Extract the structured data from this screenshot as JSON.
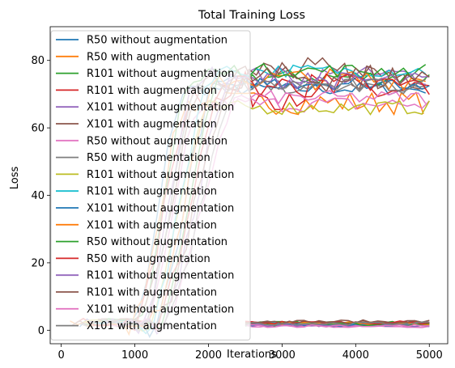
{
  "chart_data": {
    "type": "line",
    "title": "Total Training Loss",
    "xlabel": "Iterations",
    "ylabel": "Loss",
    "xlim": [
      -150,
      5250
    ],
    "ylim": [
      -4,
      90
    ],
    "xticks": [
      0,
      1000,
      2000,
      3000,
      4000,
      5000
    ],
    "yticks": [
      0,
      20,
      40,
      60,
      80
    ],
    "grid": false,
    "legend_position": "top-left",
    "series": [
      {
        "name": "R50 without augmentation",
        "color": "#1f77b4",
        "start_x": 250,
        "rise_start": 950,
        "rise_end": 1700,
        "plateau": 71.5,
        "noise": 1.2,
        "final_low": 1.8
      },
      {
        "name": "R50 with augmentation",
        "color": "#ff7f0e",
        "start_x": 120,
        "rise_start": 900,
        "rise_end": 1750,
        "plateau": 67.5,
        "noise": 2.2,
        "final_low": 2.0
      },
      {
        "name": "R101 without augmentation",
        "color": "#2ca02c",
        "start_x": 300,
        "rise_start": 1000,
        "rise_end": 1800,
        "plateau": 75.0,
        "noise": 1.5,
        "final_low": 2.2
      },
      {
        "name": "R101 with augmentation",
        "color": "#d62728",
        "start_x": 200,
        "rise_start": 950,
        "rise_end": 1850,
        "plateau": 71.0,
        "noise": 3.5,
        "final_low": 1.9
      },
      {
        "name": "X101 without augmentation",
        "color": "#9467bd",
        "start_x": 350,
        "rise_start": 1050,
        "rise_end": 1900,
        "plateau": 75.5,
        "noise": 1.8,
        "final_low": 1.5
      },
      {
        "name": "X101 with augmentation",
        "color": "#8c564b",
        "start_x": 150,
        "rise_start": 1000,
        "rise_end": 2000,
        "plateau": 76.0,
        "noise": 3.2,
        "final_low": 2.6
      },
      {
        "name": "R50 without augmentation",
        "color": "#e377c2",
        "start_x": 400,
        "rise_start": 1100,
        "rise_end": 1950,
        "plateau": 67.0,
        "noise": 1.5,
        "final_low": 1.2
      },
      {
        "name": "R50 with augmentation",
        "color": "#7f7f7f",
        "start_x": 250,
        "rise_start": 1050,
        "rise_end": 1900,
        "plateau": 72.0,
        "noise": 1.2,
        "final_low": 1.8
      },
      {
        "name": "R101 without augmentation",
        "color": "#bcbd22",
        "start_x": 300,
        "rise_start": 1100,
        "rise_end": 2050,
        "plateau": 66.0,
        "noise": 1.3,
        "final_low": 2.0
      },
      {
        "name": "R101 with augmentation",
        "color": "#17becf",
        "start_x": 450,
        "rise_start": 1150,
        "rise_end": 2100,
        "plateau": 77.0,
        "noise": 1.2,
        "final_low": 1.9
      },
      {
        "name": "X101 without augmentation",
        "color": "#1f77b4",
        "start_x": 500,
        "rise_start": 1200,
        "rise_end": 2150,
        "plateau": 73.5,
        "noise": 1.4,
        "final_low": 1.6
      },
      {
        "name": "X101 with augmentation",
        "color": "#ff7f0e",
        "start_x": 350,
        "rise_start": 1150,
        "rise_end": 2200,
        "plateau": 74.5,
        "noise": 2.0,
        "final_low": 2.1
      },
      {
        "name": "R50 without augmentation",
        "color": "#2ca02c",
        "start_x": 550,
        "rise_start": 1250,
        "rise_end": 2250,
        "plateau": 77.0,
        "noise": 1.3,
        "final_low": 1.7
      },
      {
        "name": "R50 with augmentation",
        "color": "#d62728",
        "start_x": 400,
        "rise_start": 1200,
        "rise_end": 2300,
        "plateau": 72.5,
        "noise": 2.5,
        "final_low": 2.3
      },
      {
        "name": "R101 without augmentation",
        "color": "#9467bd",
        "start_x": 600,
        "rise_start": 1300,
        "rise_end": 2350,
        "plateau": 74.0,
        "noise": 1.6,
        "final_low": 1.5
      },
      {
        "name": "R101 with augmentation",
        "color": "#8c564b",
        "start_x": 500,
        "rise_start": 1250,
        "rise_end": 2400,
        "plateau": 75.0,
        "noise": 2.8,
        "final_low": 2.4
      },
      {
        "name": "X101 without augmentation",
        "color": "#e377c2",
        "start_x": 650,
        "rise_start": 1350,
        "rise_end": 2450,
        "plateau": 69.0,
        "noise": 1.3,
        "final_low": 1.3
      },
      {
        "name": "X101 with augmentation",
        "color": "#7f7f7f",
        "start_x": 550,
        "rise_start": 1300,
        "rise_end": 2500,
        "plateau": 72.5,
        "noise": 1.4,
        "final_low": 2.0
      }
    ]
  }
}
